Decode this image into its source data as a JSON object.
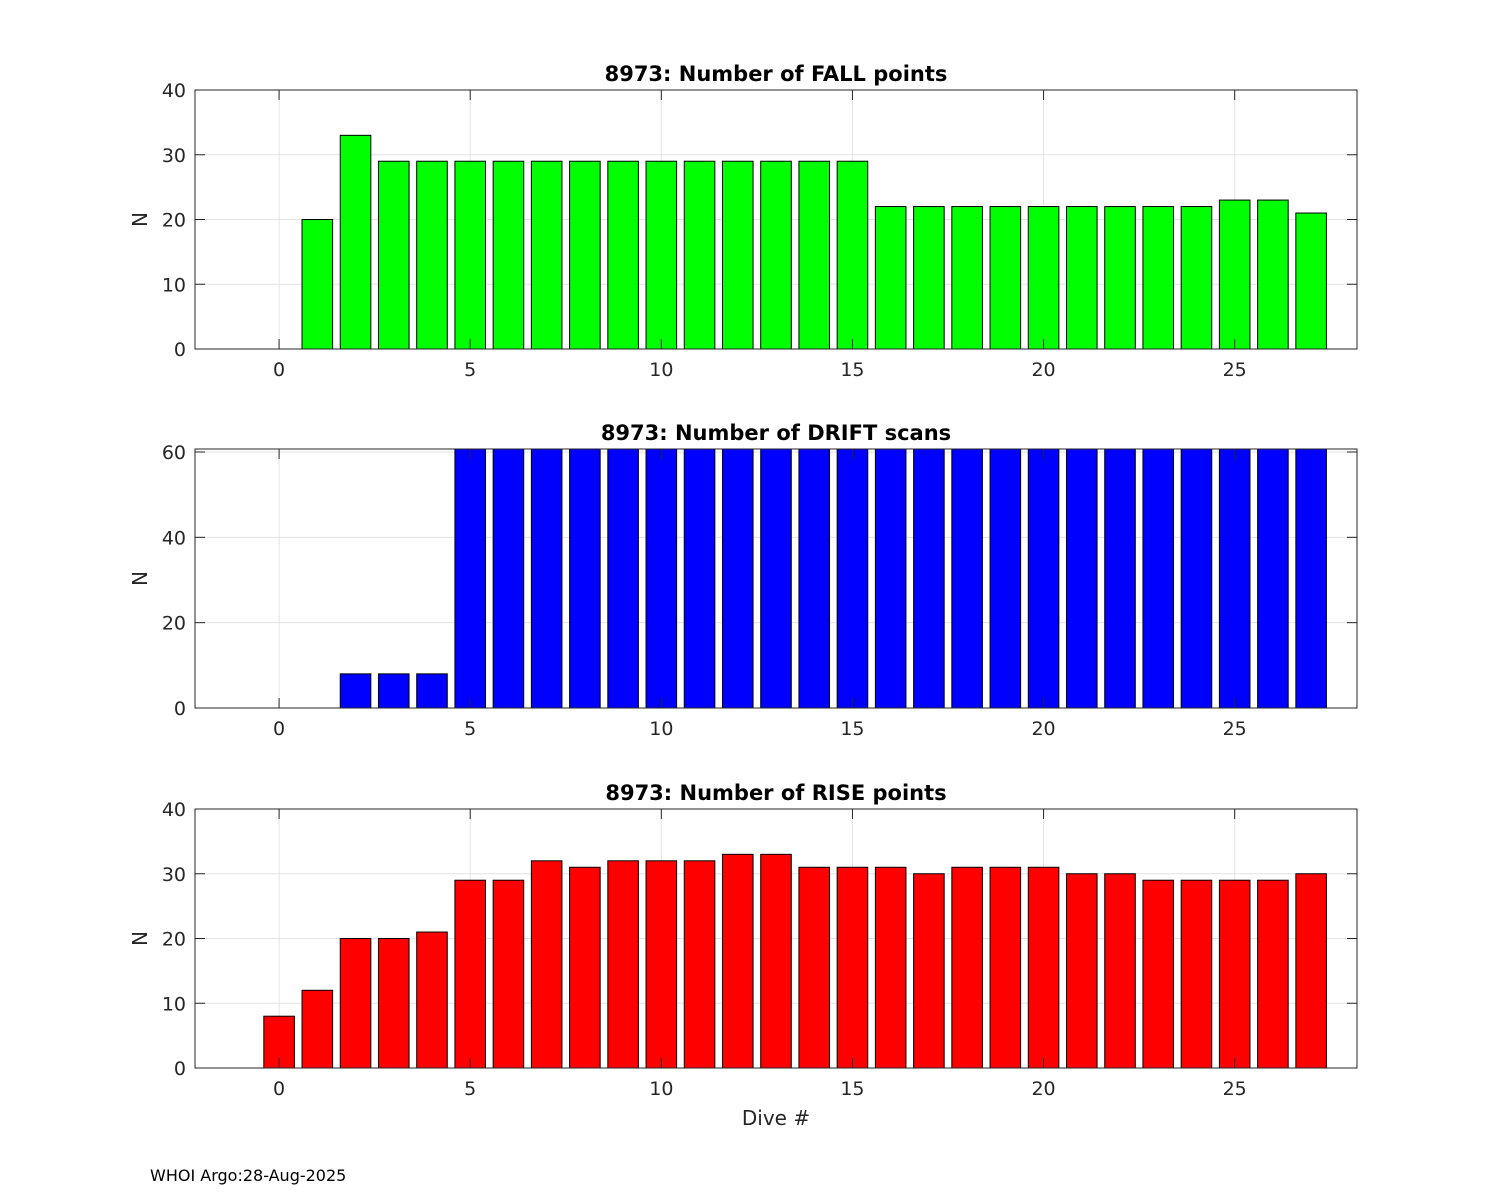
{
  "chart_data": [
    {
      "type": "bar",
      "title": "8973: Number of FALL points",
      "xlabel": "",
      "ylabel": "N",
      "xlim": [
        -2.2,
        28.2
      ],
      "ylim": [
        0,
        40
      ],
      "xticks": [
        0,
        5,
        10,
        15,
        20,
        25
      ],
      "yticks": [
        0,
        10,
        20,
        30,
        40
      ],
      "grid": true,
      "bar_color": "#00ff00",
      "x": [
        1,
        2,
        3,
        4,
        5,
        6,
        7,
        8,
        9,
        10,
        11,
        12,
        13,
        14,
        15,
        16,
        17,
        18,
        19,
        20,
        21,
        22,
        23,
        24,
        25,
        26,
        27
      ],
      "values": [
        20,
        33,
        29,
        29,
        29,
        29,
        29,
        29,
        29,
        29,
        29,
        29,
        29,
        29,
        29,
        22,
        22,
        22,
        22,
        22,
        22,
        22,
        22,
        22,
        23,
        23,
        21
      ]
    },
    {
      "type": "bar",
      "title": "8973: Number of DRIFT scans",
      "xlabel": "",
      "ylabel": "N",
      "xlim": [
        -2.2,
        28.2
      ],
      "ylim": [
        0,
        60.7
      ],
      "xticks": [
        0,
        5,
        10,
        15,
        20,
        25
      ],
      "yticks": [
        0,
        20,
        40,
        60
      ],
      "grid": true,
      "bar_color": "#0000ff",
      "x": [
        -1,
        0,
        1,
        2,
        3,
        4,
        5,
        6,
        7,
        8,
        9,
        10,
        11,
        12,
        13,
        14,
        15,
        16,
        17,
        18,
        19,
        20,
        21,
        22,
        23,
        24,
        25,
        26,
        27
      ],
      "values": [
        0,
        0,
        0,
        8,
        8,
        8,
        61,
        61,
        61,
        61,
        61,
        61,
        61,
        61,
        61,
        61,
        61,
        61,
        61,
        61,
        61,
        61,
        61,
        61,
        61,
        61,
        61,
        61,
        61
      ]
    },
    {
      "type": "bar",
      "title": "8973: Number of RISE points",
      "xlabel": "Dive #",
      "ylabel": "N",
      "xlim": [
        -2.2,
        28.2
      ],
      "ylim": [
        0,
        40
      ],
      "xticks": [
        0,
        5,
        10,
        15,
        20,
        25
      ],
      "yticks": [
        0,
        10,
        20,
        30,
        40
      ],
      "grid": true,
      "bar_color": "#ff0000",
      "x": [
        0,
        1,
        2,
        3,
        4,
        5,
        6,
        7,
        8,
        9,
        10,
        11,
        12,
        13,
        14,
        15,
        16,
        17,
        18,
        19,
        20,
        21,
        22,
        23,
        24,
        25,
        26,
        27
      ],
      "values": [
        8,
        12,
        20,
        20,
        21,
        29,
        29,
        32,
        31,
        32,
        32,
        32,
        33,
        33,
        31,
        31,
        31,
        30,
        31,
        31,
        31,
        30,
        30,
        29,
        29,
        29,
        29,
        30
      ]
    }
  ],
  "footer": "WHOI Argo:28-Aug-2025"
}
